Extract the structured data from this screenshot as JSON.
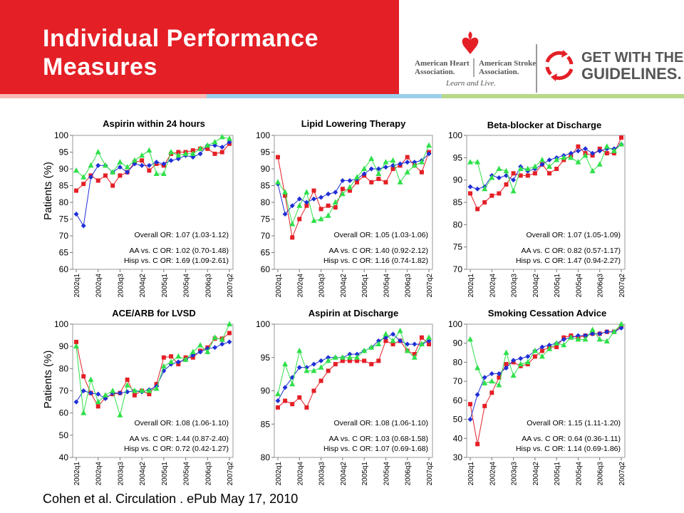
{
  "title": "Individual Performance\nMeasures",
  "logos": {
    "aha_name": "American Heart\nAssociation.",
    "asa_name": "American Stroke\nAssociation.",
    "tagline": "Learn and Live.",
    "gwtg_line1": "GET WITH THE",
    "gwtg_line2": "GUIDELINES."
  },
  "colors": {
    "header_red": "#e41f26",
    "stripe": [
      "#f8b9b4",
      "#9ccfea",
      "#b8d98a"
    ],
    "series_red": "#e41f26",
    "series_blue": "#1f2fd6",
    "series_green": "#2fe04a"
  },
  "y_axis_label": "Patients (%)",
  "citation": "Cohen et al. Circulation . ePub May 17, 2010",
  "chart_data": [
    {
      "type": "line",
      "title": "Aspirin within 24 hours",
      "ylim": [
        60,
        100
      ],
      "yticks": [
        60,
        65,
        70,
        75,
        80,
        85,
        90,
        95,
        100
      ],
      "ylabel": "Patients (%)",
      "x_tick_labels": [
        "2002q1",
        "2002q4",
        "2003q3",
        "2004q2",
        "2005q1",
        "2005q4",
        "2006q3",
        "2007q2"
      ],
      "series": [
        {
          "color": "#e41f26",
          "values": [
            83.5,
            85.5,
            88,
            86.5,
            88,
            85,
            88,
            89,
            92,
            92.5,
            89.5,
            91.5,
            91,
            94.5,
            95,
            95,
            95.5,
            96,
            96,
            94.5,
            95,
            97.5
          ]
        },
        {
          "color": "#1f2fd6",
          "values": [
            76.5,
            73,
            87.5,
            91,
            91,
            89,
            90.5,
            89,
            91.5,
            91,
            91,
            92,
            91.5,
            92.5,
            93,
            94,
            93.5,
            94.5,
            97,
            97,
            96.5,
            98
          ]
        },
        {
          "color": "#2fe04a",
          "values": [
            89.5,
            87.5,
            91,
            95,
            91,
            89,
            92,
            90.5,
            92.5,
            94,
            95.5,
            88.5,
            88.5,
            95,
            94,
            94.5,
            94.5,
            96,
            97,
            98,
            99.5,
            99
          ]
        }
      ],
      "notes": [
        "Overall OR: 1.07 (1.03-1.12)",
        "AA vs. C OR: 1.02 (0.70-1.48)",
        "Hisp vs. C OR: 1.69 (1.09-2.61)"
      ]
    },
    {
      "type": "line",
      "title": "Lipid Lowering Therapy",
      "ylim": [
        60,
        100
      ],
      "yticks": [
        60,
        65,
        70,
        75,
        80,
        85,
        90,
        95,
        100
      ],
      "x_tick_labels": [
        "2002q1",
        "2002q4",
        "2003q3",
        "2004q2",
        "2005q1",
        "2005q4",
        "2006q3",
        "2007q2"
      ],
      "series": [
        {
          "color": "#e41f26",
          "values": [
            93.5,
            82,
            69.5,
            75,
            79,
            83.5,
            78,
            79,
            78.5,
            84,
            83.5,
            86,
            88,
            86,
            87,
            86,
            90,
            91,
            93.5,
            91,
            89,
            95
          ]
        },
        {
          "color": "#1f2fd6",
          "values": [
            85.5,
            76.5,
            79,
            81,
            80,
            81,
            81.5,
            82.5,
            83,
            86.5,
            86.5,
            87,
            88.5,
            90,
            90,
            90.5,
            91,
            91.5,
            92,
            92,
            92.5,
            94.5
          ]
        },
        {
          "color": "#2fe04a",
          "values": [
            86,
            83,
            73.5,
            79,
            83,
            74.5,
            75,
            76,
            80,
            82.5,
            84.5,
            87.5,
            90,
            93,
            88.5,
            92,
            92.5,
            86,
            89,
            91,
            92,
            97
          ]
        }
      ],
      "notes": [
        "Overall OR: 1.05 (1.03-1.06)",
        "AA vs. C OR: 1.40 (0.92-2.12)",
        "Hisp vs. C OR: 1.16 (0.74-1.82)"
      ]
    },
    {
      "type": "line",
      "title": "Beta-blocker at Discharge",
      "ylim": [
        70,
        100
      ],
      "yticks": [
        70,
        75,
        80,
        85,
        90,
        95,
        100
      ],
      "x_tick_labels": [
        "2002q1",
        "2002q4",
        "2003q3",
        "2004q2",
        "2005q1",
        "2005q4",
        "2006q3",
        "2007q2"
      ],
      "series": [
        {
          "color": "#e41f26",
          "values": [
            87,
            83.5,
            85,
            86.5,
            87,
            89,
            91.5,
            91,
            91,
            91.5,
            93.5,
            91.5,
            92.5,
            94.5,
            95.5,
            97.5,
            96,
            95.5,
            97,
            96,
            96,
            99.5
          ]
        },
        {
          "color": "#1f2fd6",
          "values": [
            88.5,
            88,
            88.5,
            91,
            90.5,
            91,
            90,
            93,
            92,
            92.5,
            93.5,
            94.5,
            95,
            95.5,
            96,
            96.5,
            97,
            96,
            96.5,
            97,
            97,
            98
          ]
        },
        {
          "color": "#2fe04a",
          "values": [
            94,
            94,
            88,
            90.5,
            92.5,
            92,
            87.5,
            92.5,
            92.5,
            93,
            94.5,
            93,
            94.5,
            95,
            95,
            94,
            95.5,
            92,
            93.5,
            97.5,
            96.5,
            98
          ]
        }
      ],
      "notes": [
        "Overall OR: 1.07 (1.05-1.09)",
        "AA vs. C OR: 0.82 (0.57-1.17)",
        "Hisp vs. C OR: 1.47 (0.94-2.27)"
      ]
    },
    {
      "type": "line",
      "title": "ACE/ARB for LVSD",
      "ylim": [
        40,
        100
      ],
      "yticks": [
        40,
        50,
        60,
        70,
        80,
        90,
        100
      ],
      "ylabel": "Patients (%)",
      "x_tick_labels": [
        "2002q1",
        "2002q4",
        "2003q3",
        "2004q2",
        "2005q1",
        "2005q4",
        "2006q3",
        "2007q2"
      ],
      "series": [
        {
          "color": "#e41f26",
          "values": [
            92,
            76.5,
            69,
            63,
            67,
            68.5,
            69,
            75,
            68,
            70,
            68.5,
            73,
            85,
            85.5,
            82,
            85,
            85,
            88,
            89.5,
            93.5,
            93.5,
            96
          ]
        },
        {
          "color": "#1f2fd6",
          "values": [
            65,
            70,
            69,
            68.5,
            66.5,
            69,
            69,
            69.5,
            70,
            69.5,
            70.5,
            72,
            79,
            82,
            83,
            84,
            86,
            87.5,
            89,
            89.5,
            91,
            92
          ]
        },
        {
          "color": "#2fe04a",
          "values": [
            90,
            60,
            75,
            65,
            68,
            70,
            59,
            72.5,
            70,
            70,
            70,
            71,
            81,
            83,
            85.5,
            84,
            87.5,
            90.5,
            87.5,
            94,
            93,
            100
          ]
        }
      ],
      "notes": [
        "Overall OR: 1.08 (1.06-1.10)",
        "AA vs. C OR: 1.44 (0.87-2.40)",
        "Hisp vs. C OR: 0.72 (0.42-1.27)"
      ]
    },
    {
      "type": "line",
      "title": "Aspirin at Discharge",
      "ylim": [
        80,
        100
      ],
      "yticks": [
        80,
        85,
        90,
        95,
        100
      ],
      "x_tick_labels": [
        "2002q1",
        "2002q4",
        "2003q3",
        "2004q2",
        "2005q1",
        "2005q4",
        "2006q3",
        "2007q2"
      ],
      "series": [
        {
          "color": "#e41f26",
          "values": [
            87.5,
            88.5,
            88,
            89,
            87.5,
            90,
            91.5,
            93,
            94,
            94.5,
            94.5,
            94.5,
            94.5,
            94,
            94.5,
            97.5,
            97,
            97.5,
            96,
            95.5,
            98,
            97
          ]
        },
        {
          "color": "#1f2fd6",
          "values": [
            88.5,
            90.5,
            92,
            93.5,
            93.5,
            94,
            94.5,
            95,
            95,
            95,
            95.5,
            95.5,
            96,
            96.5,
            97.5,
            98,
            98.5,
            97.5,
            97,
            97,
            97,
            97.5
          ]
        },
        {
          "color": "#2fe04a",
          "values": [
            89.5,
            94,
            91,
            96,
            93,
            93,
            93.5,
            94.5,
            95,
            95,
            95,
            95,
            96,
            96.5,
            97,
            98.5,
            97.5,
            99,
            96,
            95,
            97,
            98
          ]
        }
      ],
      "notes": [
        "Overall OR: 1.08 (1.06-1.10)",
        "AA vs. C OR: 1.03 (0.68-1.58)",
        "Hisp vs. C OR: 1.07 (0.69-1.68)"
      ]
    },
    {
      "type": "line",
      "title": "Smoking Cessation Advice",
      "ylim": [
        30,
        100
      ],
      "yticks": [
        30,
        40,
        50,
        60,
        70,
        80,
        90,
        100
      ],
      "x_tick_labels": [
        "2002q1",
        "2002q4",
        "2003q3",
        "2004q2",
        "2005q1",
        "2005q4",
        "2006q3",
        "2007q2"
      ],
      "series": [
        {
          "color": "#e41f26",
          "values": [
            58,
            37,
            57,
            64,
            72,
            79,
            80,
            78,
            79,
            83,
            86,
            88,
            88,
            93,
            94,
            93,
            94,
            95,
            95,
            96,
            96,
            99
          ]
        },
        {
          "color": "#1f2fd6",
          "values": [
            50,
            63,
            72,
            74,
            74,
            77,
            81,
            82,
            83,
            86,
            88,
            89,
            90,
            92,
            93,
            94,
            94,
            95,
            95,
            96,
            96,
            98
          ]
        },
        {
          "color": "#2fe04a",
          "values": [
            92,
            77,
            69,
            70,
            68,
            85,
            73,
            79,
            80,
            86,
            83,
            87,
            90,
            89,
            93,
            92,
            92,
            97,
            92,
            91,
            96,
            100
          ]
        }
      ],
      "notes": [
        "Overall OR: 1.15 (1.11-1.20)",
        "AA vs. C OR: 0.64 (0.36-1.11)",
        "Hisp vs. C OR: 1.14 (0.69-1.86)"
      ]
    }
  ]
}
